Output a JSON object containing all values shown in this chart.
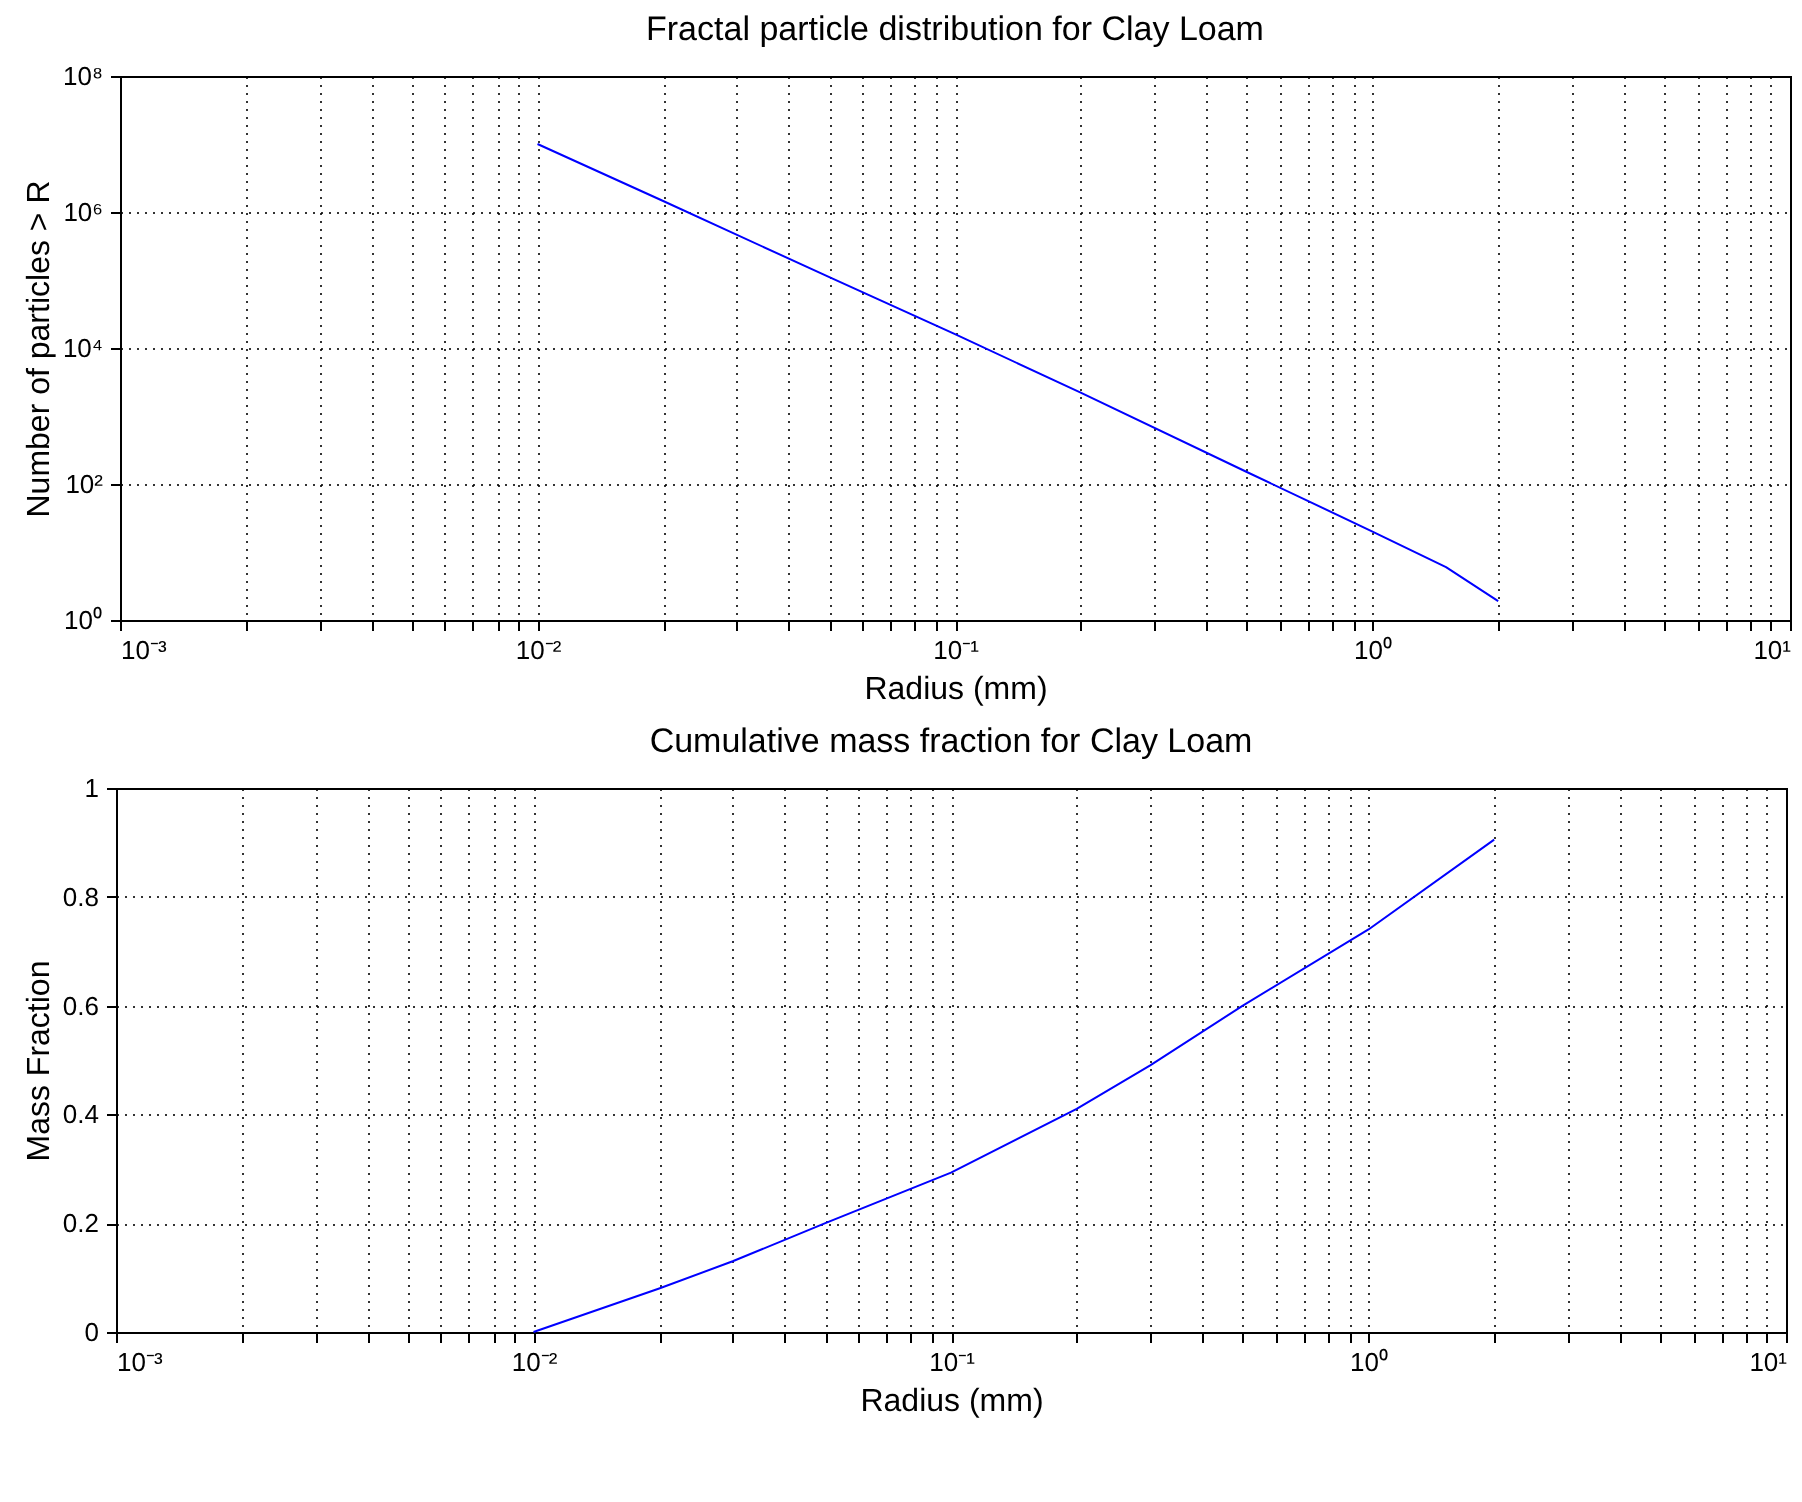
{
  "chart_data": [
    {
      "type": "line",
      "title": "Fractal particle distribution for Clay Loam",
      "xlabel": "Radius (mm)",
      "ylabel": "Number of particles > R",
      "log": "xy",
      "grid": true,
      "x": [
        0.01,
        0.02,
        0.05,
        0.1,
        0.2,
        0.5,
        1,
        1.5,
        2
      ],
      "series": [
        {
          "color": "#0000ff",
          "values": [
            10000000,
            1450000,
            110000,
            16000,
            2200,
            150,
            20,
            6,
            1.9
          ]
        }
      ],
      "xlim": [
        0.001,
        10
      ],
      "xticks": [
        {
          "value": 0.001,
          "label": "10⁻³"
        },
        {
          "value": 0.002,
          "label": null
        },
        {
          "value": 0.003,
          "label": null
        },
        {
          "value": 0.004,
          "label": null
        },
        {
          "value": 0.005,
          "label": null
        },
        {
          "value": 0.006,
          "label": null
        },
        {
          "value": 0.007,
          "label": null
        },
        {
          "value": 0.008,
          "label": null
        },
        {
          "value": 0.009,
          "label": null
        },
        {
          "value": 0.01,
          "label": "10⁻²"
        },
        {
          "value": 0.02,
          "label": null
        },
        {
          "value": 0.03,
          "label": null
        },
        {
          "value": 0.04,
          "label": null
        },
        {
          "value": 0.05,
          "label": null
        },
        {
          "value": 0.06,
          "label": null
        },
        {
          "value": 0.07,
          "label": null
        },
        {
          "value": 0.08,
          "label": null
        },
        {
          "value": 0.09,
          "label": null
        },
        {
          "value": 0.1,
          "label": "10⁻¹"
        },
        {
          "value": 0.2,
          "label": null
        },
        {
          "value": 0.3,
          "label": null
        },
        {
          "value": 0.4,
          "label": null
        },
        {
          "value": 0.5,
          "label": null
        },
        {
          "value": 0.6,
          "label": null
        },
        {
          "value": 0.7,
          "label": null
        },
        {
          "value": 0.8,
          "label": null
        },
        {
          "value": 0.9,
          "label": null
        },
        {
          "value": 1,
          "label": "10⁰"
        },
        {
          "value": 2,
          "label": null
        },
        {
          "value": 3,
          "label": null
        },
        {
          "value": 4,
          "label": null
        },
        {
          "value": 5,
          "label": null
        },
        {
          "value": 6,
          "label": null
        },
        {
          "value": 7,
          "label": null
        },
        {
          "value": 8,
          "label": null
        },
        {
          "value": 9,
          "label": null
        },
        {
          "value": 10,
          "label": "10¹"
        }
      ],
      "ylim": [
        1,
        100000000
      ],
      "yticks": [
        {
          "value": 1,
          "label": "10⁰"
        },
        {
          "value": 100,
          "label": "10²"
        },
        {
          "value": 10000,
          "label": "10⁴"
        },
        {
          "value": 1000000,
          "label": "10⁶"
        },
        {
          "value": 100000000,
          "label": "10⁸"
        }
      ]
    },
    {
      "type": "line",
      "title": "Cumulative mass fraction for Clay Loam",
      "xlabel": "Radius (mm)",
      "ylabel": "Mass Fraction",
      "log": "x",
      "grid": true,
      "x": [
        0.01,
        0.02,
        0.03,
        0.05,
        0.1,
        0.2,
        0.3,
        0.5,
        1,
        2
      ],
      "series": [
        {
          "color": "#0000ff",
          "values": [
            0,
            0.08,
            0.13,
            0.2,
            0.293,
            0.41,
            0.49,
            0.6,
            0.74,
            0.905
          ]
        }
      ],
      "xlim": [
        0.001,
        10
      ],
      "xticks": [
        {
          "value": 0.001,
          "label": "10⁻³"
        },
        {
          "value": 0.002,
          "label": null
        },
        {
          "value": 0.003,
          "label": null
        },
        {
          "value": 0.004,
          "label": null
        },
        {
          "value": 0.005,
          "label": null
        },
        {
          "value": 0.006,
          "label": null
        },
        {
          "value": 0.007,
          "label": null
        },
        {
          "value": 0.008,
          "label": null
        },
        {
          "value": 0.009,
          "label": null
        },
        {
          "value": 0.01,
          "label": "10⁻²"
        },
        {
          "value": 0.02,
          "label": null
        },
        {
          "value": 0.03,
          "label": null
        },
        {
          "value": 0.04,
          "label": null
        },
        {
          "value": 0.05,
          "label": null
        },
        {
          "value": 0.06,
          "label": null
        },
        {
          "value": 0.07,
          "label": null
        },
        {
          "value": 0.08,
          "label": null
        },
        {
          "value": 0.09,
          "label": null
        },
        {
          "value": 0.1,
          "label": "10⁻¹"
        },
        {
          "value": 0.2,
          "label": null
        },
        {
          "value": 0.3,
          "label": null
        },
        {
          "value": 0.4,
          "label": null
        },
        {
          "value": 0.5,
          "label": null
        },
        {
          "value": 0.6,
          "label": null
        },
        {
          "value": 0.7,
          "label": null
        },
        {
          "value": 0.8,
          "label": null
        },
        {
          "value": 0.9,
          "label": null
        },
        {
          "value": 1,
          "label": "10⁰"
        },
        {
          "value": 2,
          "label": null
        },
        {
          "value": 3,
          "label": null
        },
        {
          "value": 4,
          "label": null
        },
        {
          "value": 5,
          "label": null
        },
        {
          "value": 6,
          "label": null
        },
        {
          "value": 7,
          "label": null
        },
        {
          "value": 8,
          "label": null
        },
        {
          "value": 9,
          "label": null
        },
        {
          "value": 10,
          "label": "10¹"
        }
      ],
      "ylim": [
        0,
        1
      ],
      "yticks": [
        0,
        0.2,
        0.4,
        0.6,
        0.8,
        1
      ]
    }
  ]
}
